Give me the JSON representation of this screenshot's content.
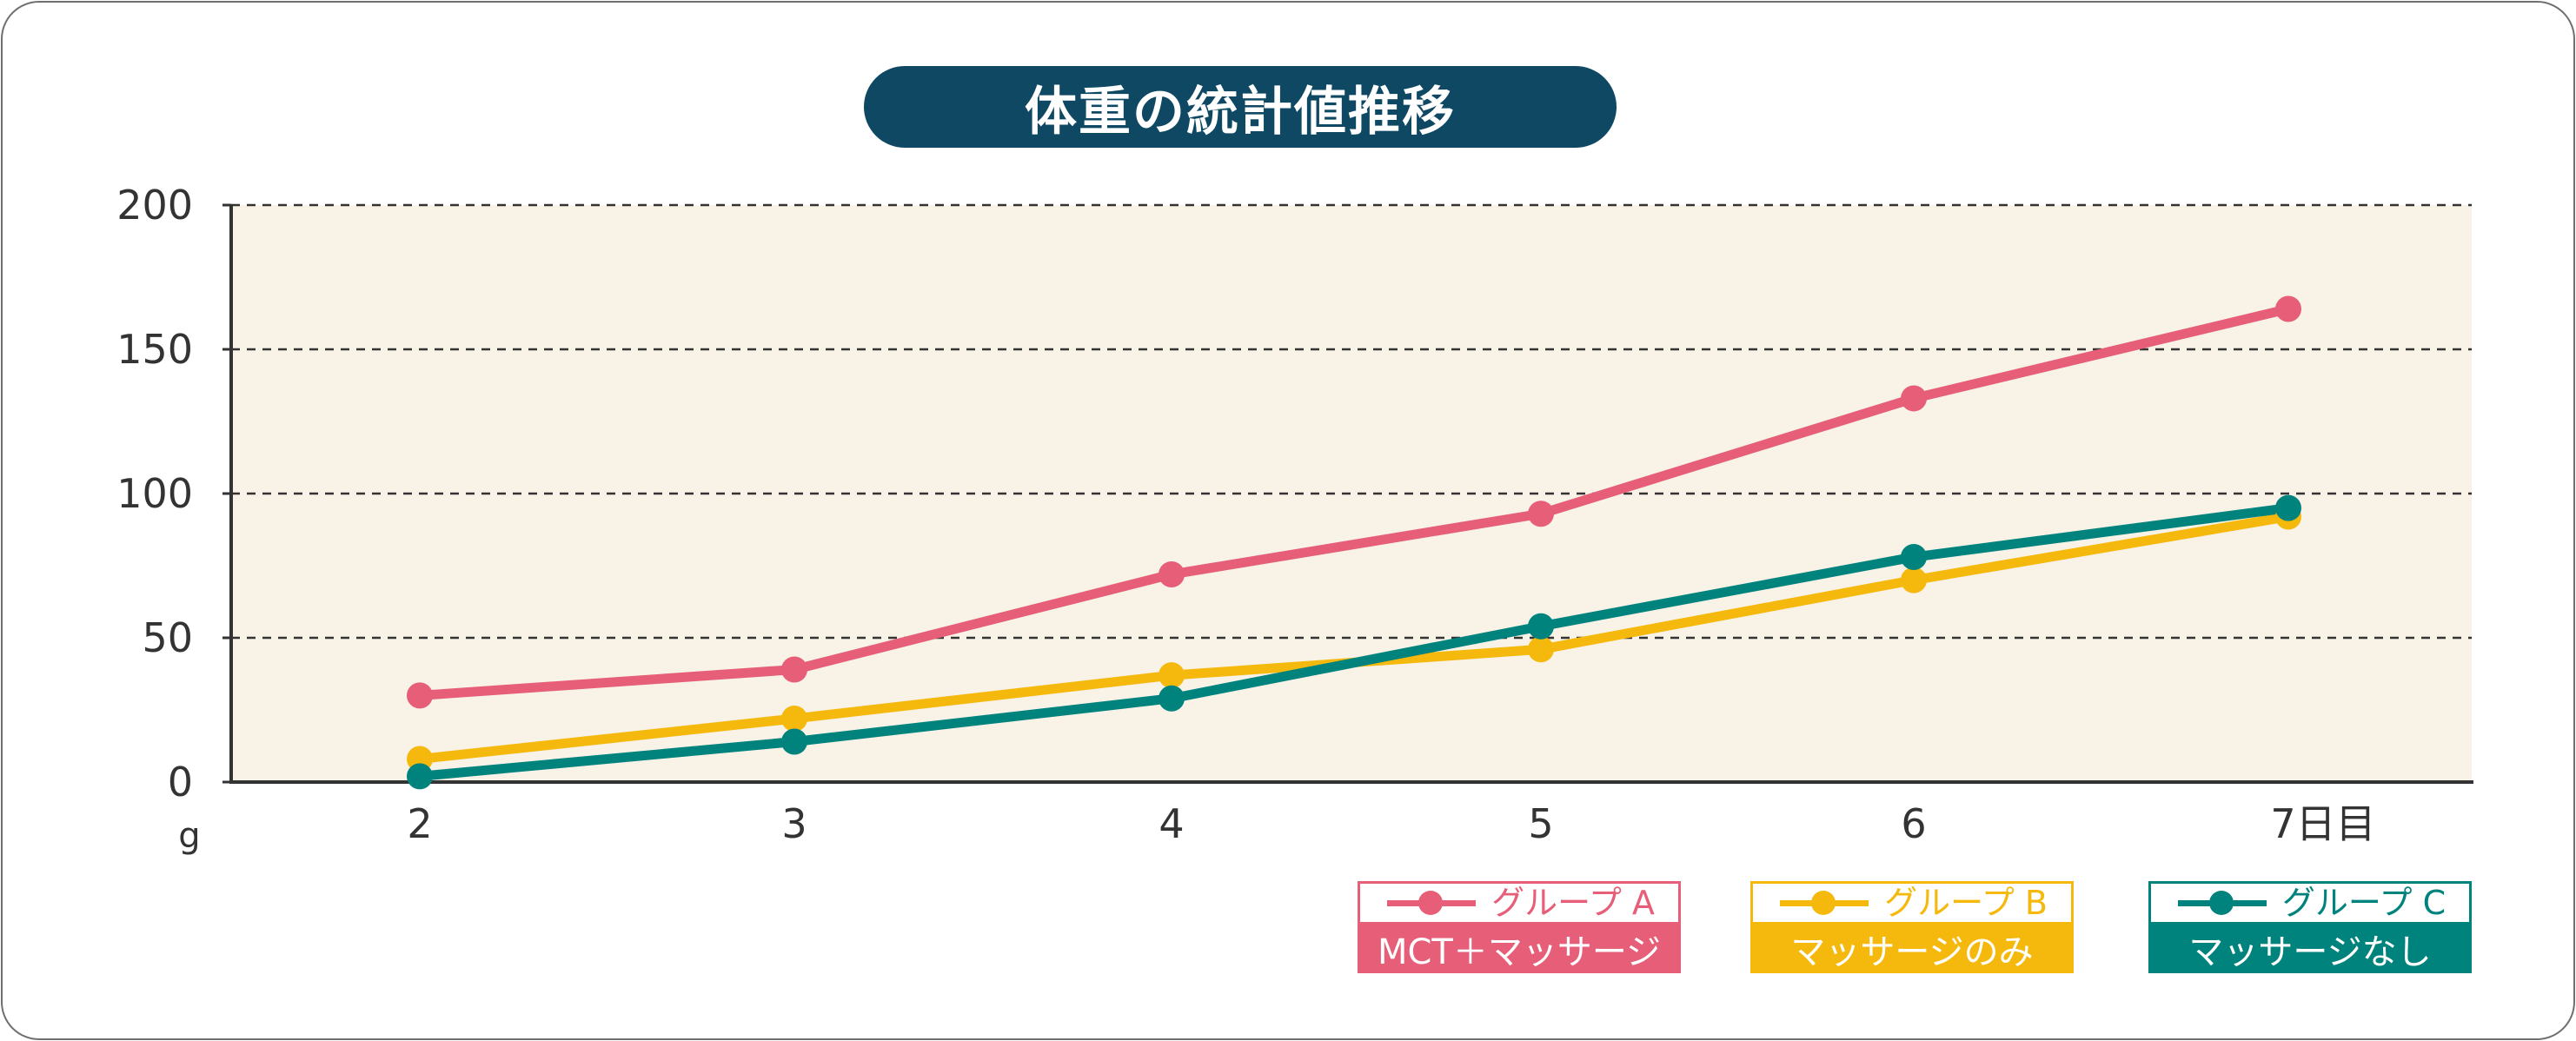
{
  "title": "体重の統計値推移",
  "chart_data": {
    "type": "line",
    "ylim": [
      0,
      200
    ],
    "yticks": [
      0,
      50,
      100,
      150,
      200
    ],
    "ylabel": "g",
    "categories": [
      "2",
      "3",
      "4",
      "5",
      "6",
      "7"
    ],
    "xtick_labels": [
      "2",
      "3",
      "4",
      "5",
      "6",
      "7日目"
    ],
    "grid": true,
    "legend_position": "bottom-right",
    "series": [
      {
        "name": "グループA",
        "sublabel": "MCT+マッサージ",
        "color": "#e65e78",
        "values": [
          30,
          39,
          72,
          93,
          133,
          164
        ]
      },
      {
        "name": "グループB",
        "sublabel": "マッサージのみ",
        "color": "#f5b90d",
        "values": [
          8,
          22,
          37,
          46,
          70,
          92
        ]
      },
      {
        "name": "グループC",
        "sublabel": "マッサージなし",
        "color": "#00837d",
        "values": [
          2,
          14,
          29,
          54,
          78,
          95
        ]
      }
    ]
  },
  "legend": [
    {
      "name": "グループ A",
      "sublabel": "MCT＋マッサージ"
    },
    {
      "name": "グループ B",
      "sublabel": "マッサージのみ"
    },
    {
      "name": "グループ C",
      "sublabel": "マッサージなし"
    }
  ],
  "colors": {
    "plot_background": "#f8f2e7",
    "title_pill": "#0e4863",
    "axis": "#333333"
  }
}
